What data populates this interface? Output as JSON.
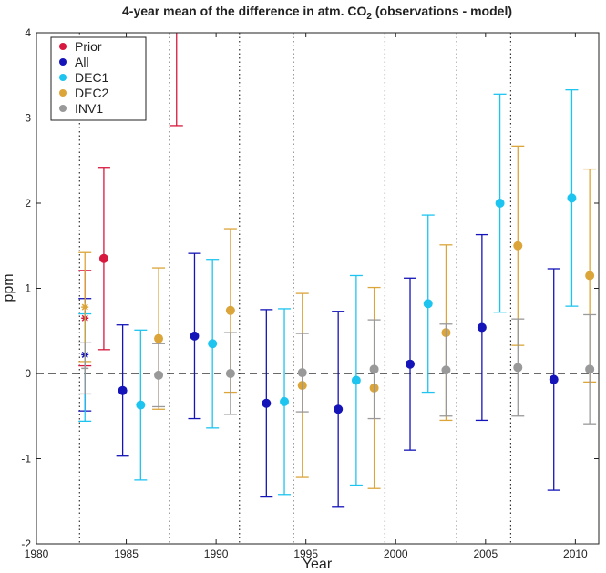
{
  "chart_data": {
    "type": "errorbar",
    "title": {
      "main": "4-year mean of the difference in atm. CO",
      "subscript": "2",
      "suffix": " (observations - model)"
    },
    "x_label": "Year",
    "y_label": "ppm",
    "xlim": [
      1980,
      2011.3
    ],
    "ylim": [
      -2,
      4
    ],
    "xticks": [
      1980,
      1985,
      1990,
      1995,
      2000,
      2005,
      2010
    ],
    "yticks": [
      -2,
      -1,
      0,
      1,
      2,
      3,
      4
    ],
    "hline": 0,
    "period_boundaries": [
      1982.4,
      1987.4,
      1991.3,
      1994.3,
      1999.4,
      2003.4,
      2006.4
    ],
    "legend": "upper left",
    "series": [
      {
        "name": "Prior",
        "color": "#d7193f",
        "x": [
          1982.7,
          1983.75,
          1987.8
        ],
        "values": [
          0.65,
          1.35,
          4.5
        ],
        "errors": [
          0.56,
          1.07,
          1.59
        ],
        "markers": [
          "star",
          "dot",
          "dot"
        ]
      },
      {
        "name": "All",
        "color": "#1414b8",
        "x": [
          1982.7,
          1984.8,
          1988.8,
          1992.8,
          1996.8,
          2000.8,
          2004.8,
          2008.8
        ],
        "values": [
          0.22,
          -0.2,
          0.44,
          -0.35,
          -0.42,
          0.11,
          0.54,
          -0.07
        ],
        "errors": [
          0.66,
          0.77,
          0.97,
          1.1,
          1.15,
          1.01,
          1.09,
          1.3
        ],
        "markers": [
          "star",
          "dot",
          "dot",
          "dot",
          "dot",
          "dot",
          "dot",
          "dot"
        ]
      },
      {
        "name": "DEC1",
        "color": "#1ec4f0",
        "x": [
          1982.7,
          1985.8,
          1989.8,
          1993.8,
          1997.8,
          2001.8,
          2005.8,
          2009.8
        ],
        "values": [
          0.07,
          -0.37,
          0.35,
          -0.33,
          -0.08,
          0.82,
          2.0,
          2.06
        ],
        "errors": [
          0.63,
          0.88,
          0.99,
          1.09,
          1.23,
          1.04,
          1.28,
          1.27
        ],
        "markers": [
          "none",
          "dot",
          "dot",
          "dot",
          "dot",
          "dot",
          "dot",
          "dot"
        ]
      },
      {
        "name": "DEC2",
        "color": "#dba53a",
        "x": [
          1982.7,
          1986.8,
          1990.8,
          1994.8,
          1998.8,
          2002.8,
          2006.8,
          2010.8
        ],
        "values": [
          0.78,
          0.41,
          0.74,
          -0.14,
          -0.17,
          0.48,
          1.5,
          1.15
        ],
        "errors": [
          0.64,
          0.83,
          0.96,
          1.08,
          1.18,
          1.03,
          1.17,
          1.25
        ],
        "markers": [
          "star",
          "dot",
          "dot",
          "dot",
          "dot",
          "dot",
          "dot",
          "dot"
        ]
      },
      {
        "name": "INV1",
        "color": "#999999",
        "x": [
          1982.7,
          1986.8,
          1990.8,
          1994.8,
          1998.8,
          2002.8,
          2006.8,
          2010.8
        ],
        "values": [
          0.06,
          -0.02,
          0.0,
          0.01,
          0.05,
          0.04,
          0.07,
          0.05
        ],
        "errors": [
          0.3,
          0.37,
          0.48,
          0.46,
          0.58,
          0.54,
          0.57,
          0.64
        ],
        "markers": [
          "plus",
          "dot",
          "dot",
          "dot",
          "dot",
          "dot",
          "dot",
          "dot"
        ]
      }
    ]
  }
}
